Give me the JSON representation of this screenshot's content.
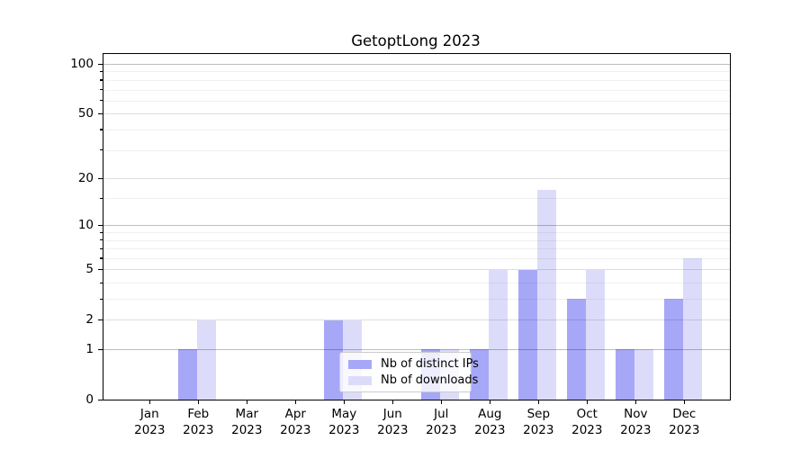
{
  "chart_data": {
    "type": "bar",
    "title": "GetoptLong 2023",
    "categories": [
      "Jan",
      "Feb",
      "Mar",
      "Apr",
      "May",
      "Jun",
      "Jul",
      "Aug",
      "Sep",
      "Oct",
      "Nov",
      "Dec"
    ],
    "x_tick_year": "2023",
    "series": [
      {
        "name": "Nb of distinct IPs",
        "color": "#a7a7f7",
        "values": [
          0,
          1,
          0,
          0,
          2,
          0,
          1,
          1,
          5,
          3,
          1,
          3
        ]
      },
      {
        "name": "Nb of downloads",
        "color": "#dcdcfa",
        "values": [
          0,
          2,
          0,
          0,
          2,
          0,
          1,
          5,
          17,
          5,
          1,
          6
        ]
      }
    ],
    "y_scale": "log1p",
    "y_ticks": [
      0,
      1,
      2,
      5,
      10,
      20,
      50,
      100
    ],
    "y_decade_gridlines": [
      1,
      10,
      100
    ],
    "y_minor_gridlines": [
      3,
      4,
      6,
      7,
      8,
      9,
      15,
      30,
      40,
      60,
      70,
      80,
      90
    ],
    "ylim": [
      0,
      117
    ],
    "grid": true,
    "legend_position": "lower center",
    "xlabel": "",
    "ylabel": ""
  }
}
